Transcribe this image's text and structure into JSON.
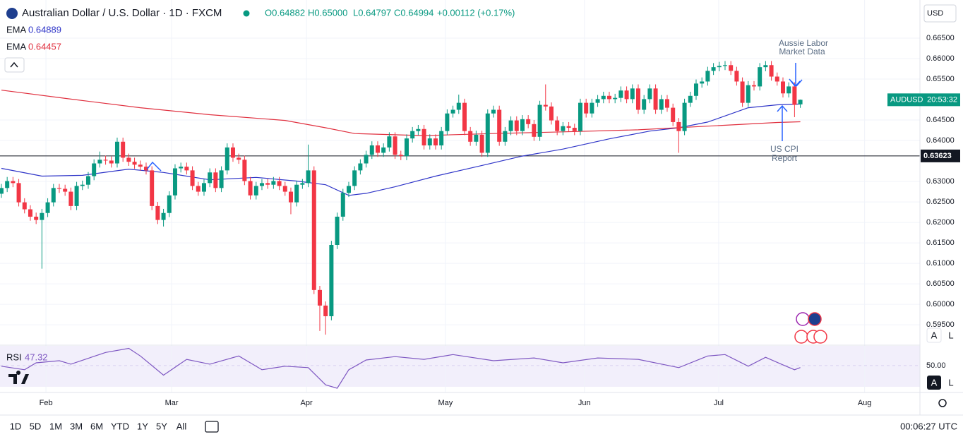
{
  "chart_data": {
    "type": "candlestick",
    "title": "Australian Dollar / U.S. Dollar · 1D · FXCM",
    "ohlc_header": [
      "O0.64882",
      "H0.65000",
      "L0.64797",
      "C0.64994",
      "+0.00112 (+0.17%)"
    ],
    "currency": "USD",
    "up_color": "#089981",
    "down_color": "#f23645",
    "grid": true,
    "xlim": [
      -0.24,
      158.66
    ],
    "xticks": [
      {
        "value": 7.7,
        "label": "Feb"
      },
      {
        "value": 29.4,
        "label": "Mar"
      },
      {
        "value": 52.7,
        "label": "Apr"
      },
      {
        "value": 76.7,
        "label": "May"
      },
      {
        "value": 100.7,
        "label": "Jun"
      },
      {
        "value": 123.9,
        "label": "Jul"
      },
      {
        "value": 149.1,
        "label": "Aug"
      }
    ],
    "ylim": [
      0.5902,
      0.6743
    ],
    "yticks": [
      {
        "value": 0.665,
        "label": "0.66500"
      },
      {
        "value": 0.66,
        "label": "0.66000"
      },
      {
        "value": 0.655,
        "label": "0.65500"
      },
      {
        "value": 0.645,
        "label": "0.64500"
      },
      {
        "value": 0.64,
        "label": "0.64000"
      },
      {
        "value": 0.63,
        "label": "0.63000"
      },
      {
        "value": 0.625,
        "label": "0.62500"
      },
      {
        "value": 0.62,
        "label": "0.62000"
      },
      {
        "value": 0.615,
        "label": "0.61500"
      },
      {
        "value": 0.61,
        "label": "0.61000"
      },
      {
        "value": 0.605,
        "label": "0.60500"
      },
      {
        "value": 0.6,
        "label": "0.60000"
      },
      {
        "value": 0.595,
        "label": "0.59500"
      }
    ],
    "level": 0.63623,
    "price_tag": {
      "symbol": "AUDUSD",
      "countdown": "20:53:32"
    },
    "candles": [
      [
        0.627,
        0.6294,
        0.626,
        0.6284
      ],
      [
        0.6284,
        0.6311,
        0.6274,
        0.6301
      ],
      [
        0.6301,
        0.6311,
        0.6286,
        0.6296
      ],
      [
        0.6296,
        0.6306,
        0.6239,
        0.6249
      ],
      [
        0.6249,
        0.6259,
        0.6222,
        0.6232
      ],
      [
        0.6232,
        0.6242,
        0.6204,
        0.6214
      ],
      [
        0.6214,
        0.6224,
        0.6196,
        0.6206
      ],
      [
        0.6206,
        0.6233,
        0.6087,
        0.6223
      ],
      [
        0.6223,
        0.6259,
        0.6213,
        0.6249
      ],
      [
        0.6249,
        0.6294,
        0.6239,
        0.6284
      ],
      [
        0.6284,
        0.6294,
        0.6272,
        0.6282
      ],
      [
        0.6282,
        0.6292,
        0.6265,
        0.6275
      ],
      [
        0.6275,
        0.6285,
        0.623,
        0.624
      ],
      [
        0.624,
        0.6299,
        0.623,
        0.6289
      ],
      [
        0.6289,
        0.6302,
        0.6279,
        0.6292
      ],
      [
        0.6292,
        0.6323,
        0.6282,
        0.6313
      ],
      [
        0.6313,
        0.6354,
        0.6303,
        0.6344
      ],
      [
        0.6344,
        0.6373,
        0.6334,
        0.6353
      ],
      [
        0.6353,
        0.6363,
        0.6341,
        0.6351
      ],
      [
        0.6351,
        0.6361,
        0.6334,
        0.6344
      ],
      [
        0.6344,
        0.6407,
        0.6334,
        0.6397
      ],
      [
        0.6397,
        0.6407,
        0.6348,
        0.6358
      ],
      [
        0.6358,
        0.6368,
        0.6338,
        0.6348
      ],
      [
        0.6348,
        0.6358,
        0.6331,
        0.6341
      ],
      [
        0.6341,
        0.6351,
        0.6326,
        0.6336
      ],
      [
        0.6336,
        0.6346,
        0.6317,
        0.6327
      ],
      [
        0.6327,
        0.6337,
        0.623,
        0.624
      ],
      [
        0.624,
        0.625,
        0.6196,
        0.6206
      ],
      [
        0.6206,
        0.6233,
        0.619,
        0.6223
      ],
      [
        0.6223,
        0.6276,
        0.6213,
        0.6266
      ],
      [
        0.6266,
        0.6342,
        0.6256,
        0.6332
      ],
      [
        0.6332,
        0.6346,
        0.6322,
        0.6336
      ],
      [
        0.6336,
        0.6346,
        0.6317,
        0.6327
      ],
      [
        0.6327,
        0.6337,
        0.6279,
        0.6289
      ],
      [
        0.6289,
        0.6299,
        0.6265,
        0.6275
      ],
      [
        0.6275,
        0.6306,
        0.6265,
        0.6296
      ],
      [
        0.6296,
        0.6332,
        0.6286,
        0.6322
      ],
      [
        0.6322,
        0.6332,
        0.6274,
        0.6284
      ],
      [
        0.6284,
        0.6337,
        0.6274,
        0.6327
      ],
      [
        0.6327,
        0.6393,
        0.6317,
        0.6383
      ],
      [
        0.6383,
        0.6393,
        0.6348,
        0.6358
      ],
      [
        0.6358,
        0.6368,
        0.6343,
        0.6353
      ],
      [
        0.6353,
        0.6363,
        0.6291,
        0.6301
      ],
      [
        0.6301,
        0.6311,
        0.6256,
        0.6266
      ],
      [
        0.6266,
        0.6299,
        0.6256,
        0.6289
      ],
      [
        0.6289,
        0.6306,
        0.6279,
        0.6296
      ],
      [
        0.6296,
        0.6306,
        0.6282,
        0.6292
      ],
      [
        0.6292,
        0.6311,
        0.6282,
        0.6301
      ],
      [
        0.6301,
        0.6311,
        0.6279,
        0.6289
      ],
      [
        0.6289,
        0.6299,
        0.6265,
        0.6275
      ],
      [
        0.6275,
        0.6285,
        0.622,
        0.6249
      ],
      [
        0.6249,
        0.6302,
        0.6239,
        0.6292
      ],
      [
        0.6292,
        0.6306,
        0.6282,
        0.6296
      ],
      [
        0.6296,
        0.639,
        0.6286,
        0.6327
      ],
      [
        0.6327,
        0.6337,
        0.6025,
        0.6035
      ],
      [
        0.6035,
        0.6045,
        0.5935,
        0.5997
      ],
      [
        0.5997,
        0.6007,
        0.5926,
        0.5971
      ],
      [
        0.5971,
        0.6155,
        0.5961,
        0.6145
      ],
      [
        0.6145,
        0.6224,
        0.6135,
        0.6214
      ],
      [
        0.6214,
        0.6282,
        0.6204,
        0.6272
      ],
      [
        0.6272,
        0.6299,
        0.6262,
        0.6289
      ],
      [
        0.6289,
        0.6337,
        0.6279,
        0.6327
      ],
      [
        0.6327,
        0.6354,
        0.6317,
        0.6344
      ],
      [
        0.6344,
        0.6375,
        0.6334,
        0.6365
      ],
      [
        0.6365,
        0.6398,
        0.6355,
        0.6388
      ],
      [
        0.6388,
        0.6398,
        0.636,
        0.637
      ],
      [
        0.637,
        0.6393,
        0.636,
        0.6383
      ],
      [
        0.6383,
        0.642,
        0.6373,
        0.641
      ],
      [
        0.641,
        0.642,
        0.6355,
        0.6365
      ],
      [
        0.6365,
        0.6375,
        0.6352,
        0.6362
      ],
      [
        0.6362,
        0.6415,
        0.6352,
        0.6405
      ],
      [
        0.6405,
        0.6433,
        0.6395,
        0.6423
      ],
      [
        0.6423,
        0.6438,
        0.6413,
        0.6428
      ],
      [
        0.6428,
        0.6438,
        0.6378,
        0.6388
      ],
      [
        0.6388,
        0.6415,
        0.6378,
        0.6405
      ],
      [
        0.6405,
        0.6415,
        0.6378,
        0.6388
      ],
      [
        0.6388,
        0.6433,
        0.6378,
        0.6423
      ],
      [
        0.6423,
        0.6476,
        0.6413,
        0.6466
      ],
      [
        0.6466,
        0.6485,
        0.6456,
        0.6475
      ],
      [
        0.6475,
        0.6512,
        0.6465,
        0.6492
      ],
      [
        0.6492,
        0.6502,
        0.6413,
        0.6423
      ],
      [
        0.6423,
        0.6433,
        0.6387,
        0.6397
      ],
      [
        0.6397,
        0.6424,
        0.6387,
        0.6414
      ],
      [
        0.6414,
        0.6424,
        0.636,
        0.637
      ],
      [
        0.637,
        0.6476,
        0.636,
        0.6466
      ],
      [
        0.6466,
        0.6485,
        0.6456,
        0.6475
      ],
      [
        0.6475,
        0.6485,
        0.6387,
        0.6397
      ],
      [
        0.6397,
        0.6433,
        0.6387,
        0.6423
      ],
      [
        0.6423,
        0.6459,
        0.6413,
        0.6449
      ],
      [
        0.6449,
        0.6459,
        0.6413,
        0.6423
      ],
      [
        0.6423,
        0.6462,
        0.6413,
        0.6452
      ],
      [
        0.6452,
        0.6462,
        0.643,
        0.644
      ],
      [
        0.644,
        0.645,
        0.6399,
        0.6409
      ],
      [
        0.6409,
        0.6497,
        0.6399,
        0.6487
      ],
      [
        0.6487,
        0.6537,
        0.6473,
        0.6483
      ],
      [
        0.6483,
        0.6493,
        0.6439,
        0.6449
      ],
      [
        0.6449,
        0.6459,
        0.6413,
        0.6423
      ],
      [
        0.6423,
        0.6445,
        0.6413,
        0.6435
      ],
      [
        0.6435,
        0.6445,
        0.6421,
        0.6431
      ],
      [
        0.6431,
        0.6441,
        0.6413,
        0.6423
      ],
      [
        0.6423,
        0.6502,
        0.6413,
        0.6492
      ],
      [
        0.6492,
        0.6502,
        0.6456,
        0.6466
      ],
      [
        0.6466,
        0.6502,
        0.6456,
        0.6492
      ],
      [
        0.6492,
        0.6511,
        0.6482,
        0.6501
      ],
      [
        0.6501,
        0.6519,
        0.6491,
        0.6509
      ],
      [
        0.6509,
        0.6519,
        0.6491,
        0.6501
      ],
      [
        0.6501,
        0.6514,
        0.6491,
        0.6504
      ],
      [
        0.6504,
        0.6532,
        0.6494,
        0.6522
      ],
      [
        0.6522,
        0.6532,
        0.6491,
        0.6501
      ],
      [
        0.6501,
        0.6537,
        0.6491,
        0.6527
      ],
      [
        0.6527,
        0.6537,
        0.6465,
        0.6475
      ],
      [
        0.6475,
        0.6511,
        0.6465,
        0.6501
      ],
      [
        0.6501,
        0.6537,
        0.6491,
        0.6527
      ],
      [
        0.6527,
        0.6537,
        0.6465,
        0.6475
      ],
      [
        0.6475,
        0.6511,
        0.6465,
        0.6501
      ],
      [
        0.6501,
        0.6511,
        0.647,
        0.648
      ],
      [
        0.648,
        0.649,
        0.6435,
        0.6445
      ],
      [
        0.6445,
        0.6455,
        0.637,
        0.6423
      ],
      [
        0.6423,
        0.6502,
        0.6413,
        0.6492
      ],
      [
        0.6492,
        0.6519,
        0.6482,
        0.6509
      ],
      [
        0.6509,
        0.6549,
        0.6499,
        0.6539
      ],
      [
        0.6539,
        0.6554,
        0.6529,
        0.6544
      ],
      [
        0.6544,
        0.658,
        0.6534,
        0.657
      ],
      [
        0.657,
        0.6589,
        0.656,
        0.6579
      ],
      [
        0.6579,
        0.6592,
        0.6569,
        0.6582
      ],
      [
        0.6582,
        0.6594,
        0.6572,
        0.6584
      ],
      [
        0.6584,
        0.6594,
        0.656,
        0.657
      ],
      [
        0.657,
        0.658,
        0.6534,
        0.6544
      ],
      [
        0.6544,
        0.6554,
        0.6482,
        0.6492
      ],
      [
        0.6492,
        0.6545,
        0.6482,
        0.6535
      ],
      [
        0.6535,
        0.6545,
        0.6522,
        0.6532
      ],
      [
        0.6532,
        0.6589,
        0.6522,
        0.6579
      ],
      [
        0.6579,
        0.6594,
        0.6569,
        0.6584
      ],
      [
        0.6584,
        0.6594,
        0.6546,
        0.6556
      ],
      [
        0.6556,
        0.6566,
        0.6534,
        0.6544
      ],
      [
        0.6544,
        0.6554,
        0.6505,
        0.6515
      ],
      [
        0.6515,
        0.6542,
        0.6505,
        0.6532
      ],
      [
        0.6532,
        0.6542,
        0.6457,
        0.6487
      ],
      [
        0.64882,
        0.65,
        0.64797,
        0.64994
      ]
    ],
    "series": [
      {
        "name": "EMA",
        "legend_value": "0.64889",
        "color": "#2f35c8",
        "x": [
          0,
          7,
          14,
          22,
          28,
          36,
          44,
          51,
          56,
          60,
          63,
          68,
          75,
          83,
          90,
          97,
          105,
          112,
          117,
          122,
          129,
          134,
          138
        ],
        "values": [
          0.6332,
          0.6313,
          0.6315,
          0.633,
          0.6322,
          0.6304,
          0.631,
          0.6301,
          0.6292,
          0.6266,
          0.6271,
          0.6287,
          0.6313,
          0.6339,
          0.6362,
          0.6379,
          0.6404,
          0.6423,
          0.6431,
          0.6445,
          0.648,
          0.6487,
          0.64889
        ]
      },
      {
        "name": "EMA",
        "legend_value": "0.64457",
        "color": "#e0303f",
        "x": [
          0,
          12,
          24,
          36,
          49,
          56,
          61,
          73,
          85,
          97,
          110,
          122,
          134,
          138
        ],
        "values": [
          0.6523,
          0.6501,
          0.648,
          0.6463,
          0.6449,
          0.6431,
          0.6417,
          0.6412,
          0.6417,
          0.6421,
          0.6426,
          0.6435,
          0.6444,
          0.64457
        ]
      }
    ],
    "rsi": {
      "name": "RSI",
      "legend_value": "47.32",
      "color": "#7e57c2",
      "ylim": [
        20,
        76
      ],
      "yticks": [
        {
          "value": 50,
          "label": "50.00"
        }
      ],
      "x": [
        0,
        4,
        6,
        10,
        12,
        18,
        22,
        24,
        28,
        32,
        36,
        41,
        45,
        49,
        53,
        56,
        58,
        60,
        63,
        68,
        73,
        78,
        85,
        92,
        97,
        103,
        110,
        117,
        122,
        125,
        129,
        132,
        135,
        137,
        138
      ],
      "values": [
        49.1,
        44.5,
        53.6,
        56.4,
        51.8,
        67.3,
        72.7,
        62.7,
        37.3,
        58.2,
        51.8,
        62.7,
        44.5,
        49.1,
        47.3,
        24.5,
        20.0,
        44.5,
        57.3,
        61.8,
        58.2,
        64.5,
        56.4,
        60.0,
        53.6,
        60.0,
        58.2,
        47.3,
        62.7,
        64.5,
        49.1,
        60.9,
        50.9,
        44.5,
        47.32
      ]
    },
    "annotations": [
      [
        "Aussie Labor",
        "Market Data"
      ],
      [
        "US CPI",
        "Report"
      ]
    ],
    "ranges": [
      "1D",
      "5D",
      "1M",
      "3M",
      "6M",
      "YTD",
      "1Y",
      "5Y",
      "All"
    ],
    "clock": "00:06:27 UTC",
    "scale_buttons": [
      "A",
      "L"
    ]
  }
}
